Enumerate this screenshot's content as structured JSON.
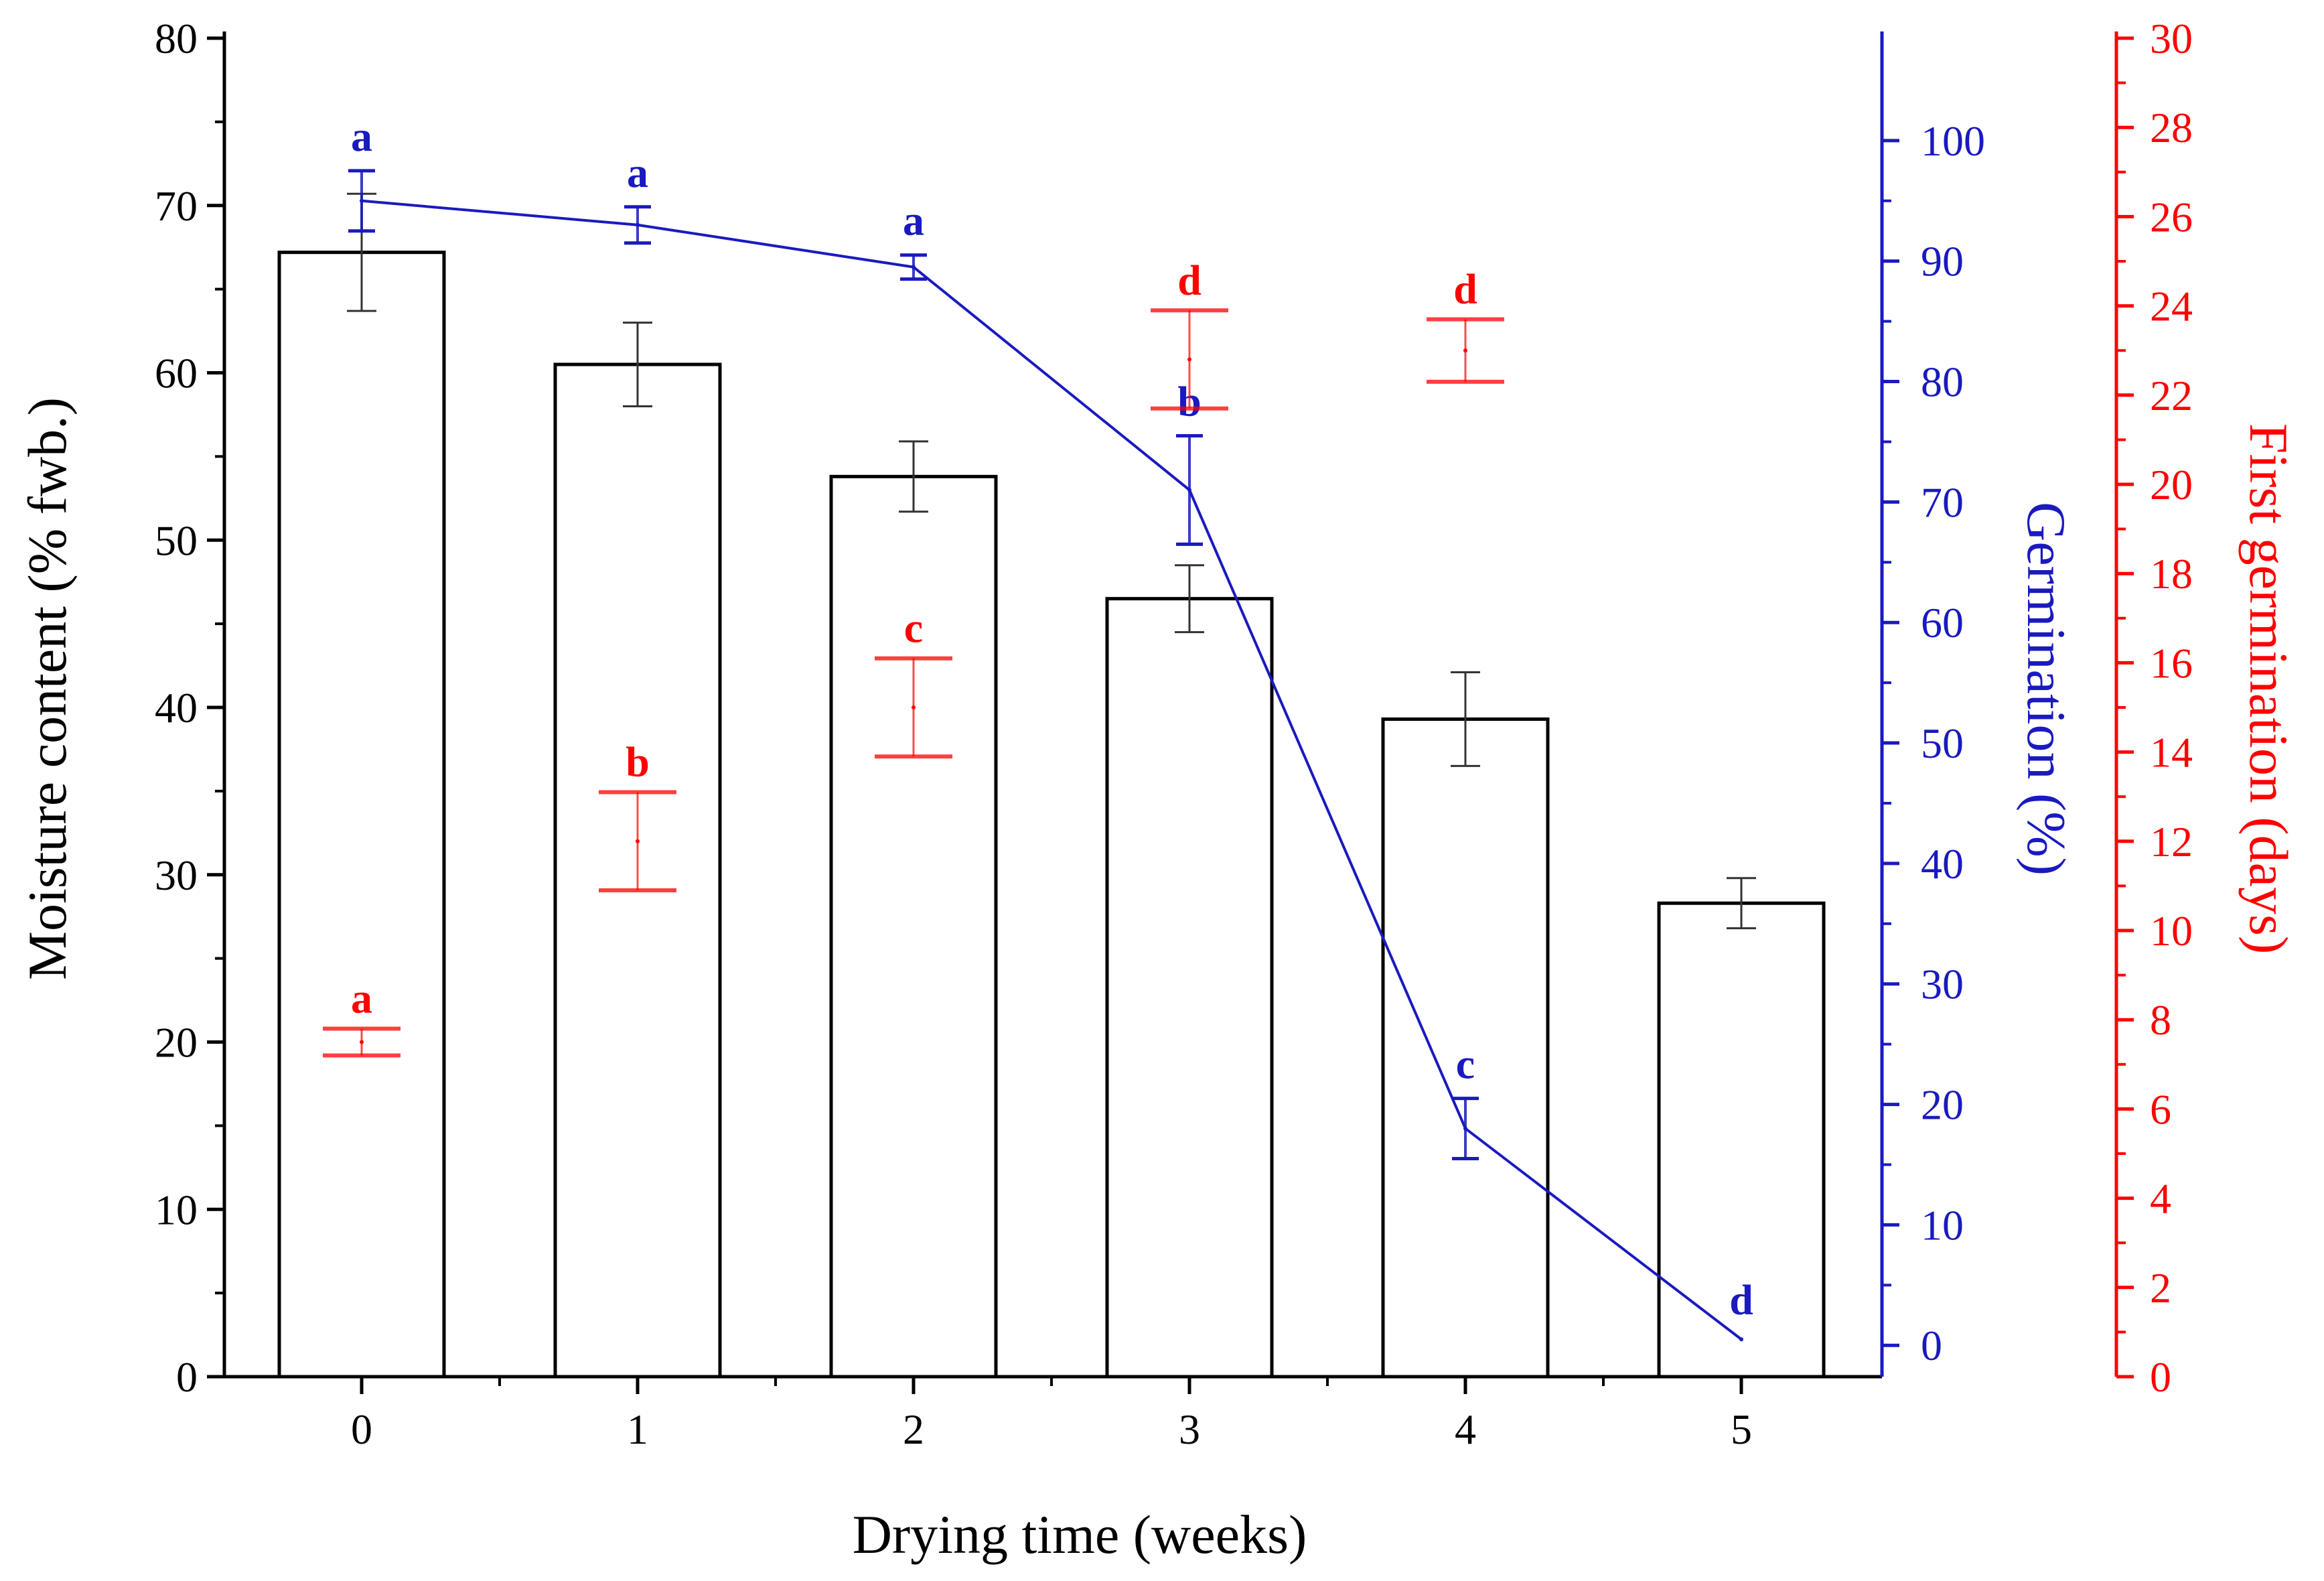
{
  "chart_data": {
    "type": "bar",
    "xlabel": "Drying time (weeks)",
    "categories": [
      "0",
      "1",
      "2",
      "3",
      "4",
      "5"
    ],
    "moisture": {
      "axis_label": "Moisture content (% fwb.)",
      "ylim": [
        0,
        80
      ],
      "ticks": [
        "0",
        "10",
        "20",
        "30",
        "40",
        "50",
        "60",
        "70",
        "80"
      ],
      "values": [
        67.2,
        60.5,
        53.8,
        46.5,
        39.3,
        28.3
      ],
      "errors": [
        3.5,
        2.5,
        2.1,
        2.0,
        2.8,
        1.5
      ]
    },
    "germination": {
      "axis_label": "Germination (%)",
      "ylim": [
        -2.6,
        108.5
      ],
      "ticks": [
        "0",
        "10",
        "20",
        "30",
        "40",
        "50",
        "60",
        "70",
        "80",
        "90",
        "100"
      ],
      "values": [
        95.0,
        93.0,
        89.5,
        71.0,
        18.0,
        0.5
      ],
      "errors": [
        2.5,
        1.5,
        1.0,
        4.5,
        2.5,
        0
      ],
      "letters": [
        "a",
        "a",
        "a",
        "b",
        "c",
        "d"
      ],
      "color": "#1a1abf"
    },
    "first_germination": {
      "axis_label": "First germination (days)",
      "ylim": [
        0,
        30
      ],
      "ticks": [
        "0",
        "2",
        "4",
        "6",
        "8",
        "10",
        "12",
        "14",
        "16",
        "18",
        "20",
        "22",
        "24",
        "26",
        "28",
        "30"
      ],
      "values": [
        7.5,
        12.0,
        15.0,
        22.8,
        23.0
      ],
      "errors": [
        0.3,
        1.1,
        1.1,
        1.1,
        0.7
      ],
      "letters": [
        "a",
        "b",
        "c",
        "d",
        "d"
      ],
      "color": "#ff0000"
    }
  }
}
